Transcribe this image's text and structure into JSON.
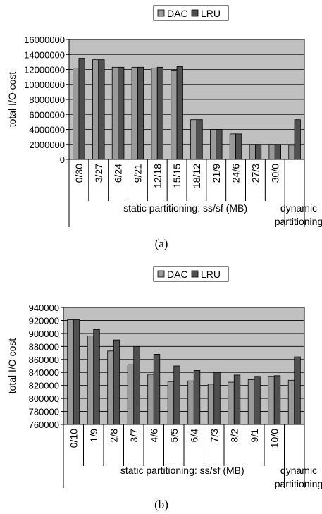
{
  "chart_data": [
    {
      "type": "bar",
      "caption": "(a)",
      "ylabel": "total I/O cost",
      "xlabel": "static partitioning: ss/sf (MB)",
      "extra_group_label": "dynamic partitioning",
      "ylim": [
        0,
        16000000
      ],
      "yticks": [
        "0",
        "2000000",
        "4000000",
        "6000000",
        "8000000",
        "10000000",
        "12000000",
        "14000000",
        "16000000"
      ],
      "grid": true,
      "legend_position": "top-center",
      "categories": [
        "0/30",
        "3/27",
        "6/24",
        "9/21",
        "12/18",
        "15/15",
        "18/12",
        "21/9",
        "24/6",
        "27/3",
        "30/0",
        ""
      ],
      "series": [
        {
          "name": "DAC",
          "color": "#9a9a9a",
          "values": [
            12200000,
            13300000,
            12300000,
            12300000,
            12200000,
            11900000,
            5300000,
            4000000,
            3400000,
            2000000,
            2000000,
            1900000
          ]
        },
        {
          "name": "LRU",
          "color": "#505050",
          "values": [
            13500000,
            13300000,
            12300000,
            12300000,
            12300000,
            12400000,
            5300000,
            4000000,
            3400000,
            2000000,
            2000000,
            5300000
          ]
        }
      ]
    },
    {
      "type": "bar",
      "caption": "(b)",
      "ylabel": "total I/O cost",
      "xlabel": "static partitioning: ss/sf (MB)",
      "extra_group_label": "dynamic partitioning",
      "ylim": [
        760000,
        940000
      ],
      "yticks": [
        "760000",
        "780000",
        "800000",
        "820000",
        "840000",
        "860000",
        "880000",
        "900000",
        "920000",
        "940000"
      ],
      "grid": true,
      "legend_position": "top-center",
      "categories": [
        "0/10",
        "1/9",
        "2/8",
        "3/7",
        "4/6",
        "5/5",
        "6/4",
        "7/3",
        "8/2",
        "9/1",
        "10/0",
        ""
      ],
      "series": [
        {
          "name": "DAC",
          "color": "#9a9a9a",
          "values": [
            921000,
            896000,
            873000,
            852000,
            837000,
            826000,
            827000,
            822000,
            825000,
            829000,
            834000,
            828000
          ]
        },
        {
          "name": "LRU",
          "color": "#505050",
          "values": [
            921000,
            906000,
            890000,
            880000,
            868000,
            850000,
            843000,
            840000,
            836000,
            834000,
            835000,
            864000
          ]
        }
      ]
    }
  ]
}
